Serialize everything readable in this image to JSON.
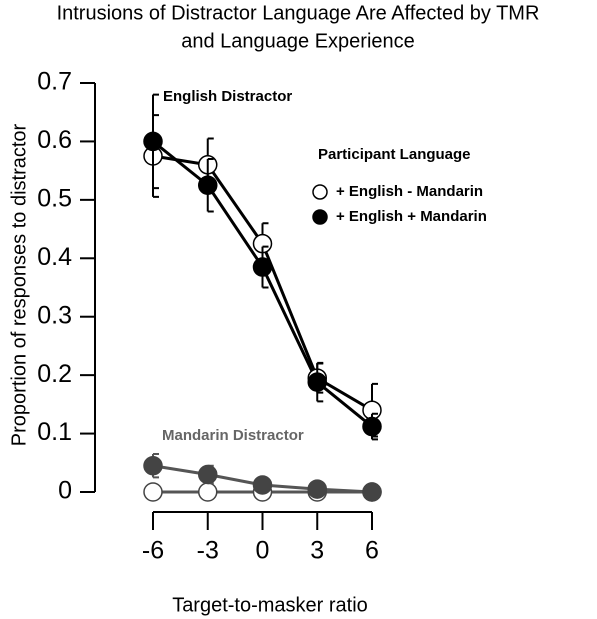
{
  "chart_data": {
    "type": "line",
    "title": [
      "Intrusions of Distractor Language Are Affected by TMR",
      "and Language Experience"
    ],
    "x_label": "Target-to-masker ratio",
    "y_label": "Proportion of responses to distractor",
    "x": [
      -6,
      -3,
      0,
      3,
      6
    ],
    "xlim": [
      -6,
      6
    ],
    "xticks": [
      -6,
      -3,
      0,
      3,
      6
    ],
    "ylim": [
      0,
      0.7
    ],
    "yticks": [
      0,
      0.1,
      0.2,
      0.3,
      0.4,
      0.5,
      0.6,
      0.7
    ],
    "legend": {
      "title": "Participant Language",
      "position": "upper right"
    },
    "groups": [
      {
        "label": "English Distractor",
        "color": "#000000",
        "series": [
          {
            "name": "+ English - Mandarin",
            "marker": "open",
            "values": [
              0.575,
              0.56,
              0.425,
              0.195,
              0.14
            ],
            "errors": [
              0.07,
              0.045,
              0.035,
              0.025,
              0.045
            ]
          },
          {
            "name": "+ English + Mandarin",
            "marker": "filled",
            "values": [
              0.6,
              0.525,
              0.385,
              0.188,
              0.112
            ],
            "errors": [
              0.08,
              0.045,
              0.035,
              0.033,
              0.022
            ]
          }
        ]
      },
      {
        "label": "Mandarin Distractor",
        "color": "#555555",
        "series": [
          {
            "marker": "open",
            "values": [
              0,
              0,
              0,
              0,
              0
            ],
            "errors": [
              0,
              0,
              0,
              0,
              0
            ]
          },
          {
            "marker": "filled",
            "values": [
              0.045,
              0.03,
              0.012,
              0.005,
              0
            ],
            "errors": [
              0.02,
              0.015,
              0.01,
              0.008,
              0.005
            ]
          }
        ]
      }
    ]
  }
}
